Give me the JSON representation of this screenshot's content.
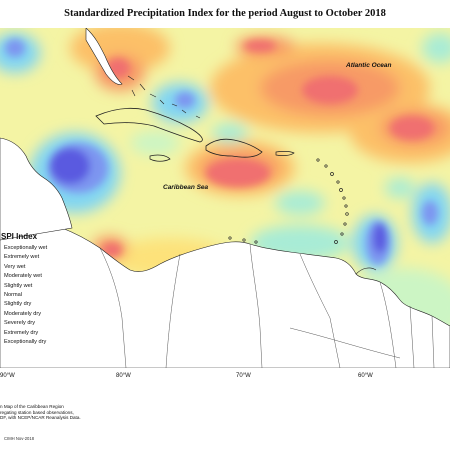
{
  "title": "Standardized Precipitation Index for the period August to October 2018",
  "map": {
    "atlantic_label": "Atlantic Ocean",
    "caribbean_label": "Caribbean Sea"
  },
  "legend": {
    "title": "SPI Index",
    "items": [
      {
        "label": "Exceptionally wet",
        "color": "#5a5ae0"
      },
      {
        "label": "Extremely wet",
        "color": "#7d95f0"
      },
      {
        "label": "Very wet",
        "color": "#82d6f2"
      },
      {
        "label": "Moderately wet",
        "color": "#a8ecd6"
      },
      {
        "label": "Slightly wet",
        "color": "#ccf5c4"
      },
      {
        "label": "Normal",
        "color": "#f4f4a4"
      },
      {
        "label": "Slightly dry",
        "color": "#fde27a"
      },
      {
        "label": "Moderately dry",
        "color": "#fcc068"
      },
      {
        "label": "Severely dry",
        "color": "#f79a66"
      },
      {
        "label": "Extremely dry",
        "color": "#f07070"
      },
      {
        "label": "Exceptionally dry",
        "color": "#e05050"
      }
    ]
  },
  "lon_labels": [
    "90°W",
    "80°W",
    "70°W",
    "60°W"
  ],
  "source_lines": [
    "n Map of the Caribbean Region",
    "regating station based observations,",
    "DF, with NCEP/NCAR Reanalysis Data."
  ],
  "credit": "CIMH Nov-2018"
}
